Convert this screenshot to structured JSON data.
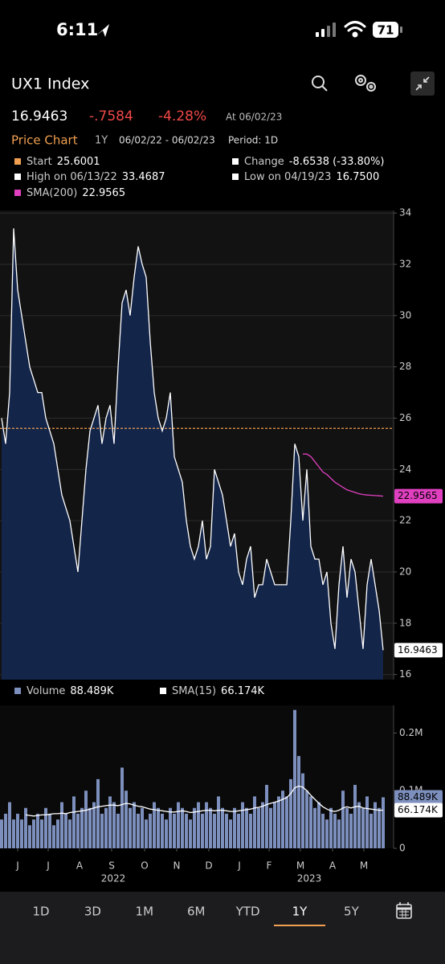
{
  "status_bar": {
    "time": "6:11",
    "battery": "71"
  },
  "header": {
    "title": "UX1 Index"
  },
  "quote": {
    "last": "16.9463",
    "change": "-.7584",
    "change_pct": "-4.28%",
    "as_of": "At 06/02/23"
  },
  "chart_header": {
    "title": "Price Chart",
    "range": "1Y",
    "dates": "06/02/22 - 06/02/23",
    "period": "Period: 1D"
  },
  "stats": [
    {
      "label": "Start",
      "value": "25.6001",
      "color": "#f0a050"
    },
    {
      "label": "High on 06/13/22",
      "value": "33.4687",
      "color": "#ffffff"
    },
    {
      "label": "SMA(200)",
      "value": "22.9565",
      "color": "#e040c0"
    },
    {
      "label": "Change",
      "value": "-8.6538 (-33.80%)",
      "color": "#ffffff"
    },
    {
      "label": "Low on 04/19/23",
      "value": "16.7500",
      "color": "#ffffff"
    }
  ],
  "chart_data": [
    {
      "type": "area",
      "xlim": [
        0,
        95
      ],
      "ylim": [
        15.8,
        34.1
      ],
      "yticks": [
        16,
        18,
        20,
        22,
        24,
        26,
        28,
        30,
        32,
        34
      ],
      "grid": true,
      "fill": "#14254a",
      "reference_line": {
        "value": 25.6001,
        "color": "#f0a050"
      },
      "series": [
        {
          "color": "#ffffff",
          "values": [
            26,
            25,
            27,
            33.4,
            31,
            30,
            29,
            28,
            27.5,
            27,
            27,
            26,
            25.5,
            25,
            24,
            23,
            22.5,
            22,
            21,
            20,
            22,
            24,
            25.5,
            26,
            26.5,
            25,
            26,
            26.5,
            25,
            28,
            30.5,
            31,
            30,
            31.5,
            32.7,
            32,
            31.5,
            29,
            27,
            26,
            25.5,
            26,
            27,
            24.5,
            24,
            23.5,
            22,
            21,
            20.5,
            21,
            22,
            20.5,
            21,
            24,
            23.5,
            23,
            22,
            21,
            21.5,
            20,
            19.5,
            20.5,
            21,
            19,
            19.5,
            19.5,
            20.5,
            20,
            19.5,
            19.5,
            19.5,
            19.5,
            22,
            25,
            24.5,
            22,
            24,
            21,
            20.5,
            20.5,
            19.5,
            20,
            18,
            17,
            19.5,
            21,
            19,
            20.5,
            20,
            18.5,
            17,
            19.5,
            20.5,
            19.5,
            18.5,
            16.9463
          ]
        },
        {
          "color": "#e040c0",
          "values": [
            null,
            null,
            null,
            null,
            null,
            null,
            null,
            null,
            null,
            null,
            null,
            null,
            null,
            null,
            null,
            null,
            null,
            null,
            null,
            null,
            null,
            null,
            null,
            null,
            null,
            null,
            null,
            null,
            null,
            null,
            null,
            null,
            null,
            null,
            null,
            null,
            null,
            null,
            null,
            null,
            null,
            null,
            null,
            null,
            null,
            null,
            null,
            null,
            null,
            null,
            null,
            null,
            null,
            null,
            null,
            null,
            null,
            null,
            null,
            null,
            null,
            null,
            null,
            null,
            null,
            null,
            null,
            null,
            null,
            null,
            null,
            null,
            null,
            null,
            null,
            24.6,
            24.6,
            24.5,
            24.3,
            24.1,
            23.9,
            23.8,
            23.65,
            23.5,
            23.4,
            23.3,
            23.2,
            23.15,
            23.1,
            23.05,
            23.02,
            23.0,
            22.99,
            22.98,
            22.97,
            22.9565
          ]
        }
      ]
    },
    {
      "type": "bar",
      "xlim": [
        0,
        95
      ],
      "ylim": [
        0,
        0.248
      ],
      "yticks": [
        {
          "value": 0,
          "label": "0"
        },
        {
          "value": 0.1,
          "label": "0.1M"
        },
        {
          "value": 0.2,
          "label": "0.2M"
        }
      ],
      "xticks": [
        {
          "value": 4,
          "label": "J"
        },
        {
          "value": 11.6,
          "label": "J"
        },
        {
          "value": 19.4,
          "label": "A"
        },
        {
          "value": 27.4,
          "label": "S"
        },
        {
          "value": 35.6,
          "label": "O"
        },
        {
          "value": 43.6,
          "label": "N"
        },
        {
          "value": 51.6,
          "label": "D"
        },
        {
          "value": 59.2,
          "label": "J"
        },
        {
          "value": 66.6,
          "label": "F"
        },
        {
          "value": 74.4,
          "label": "M"
        },
        {
          "value": 82.4,
          "label": "A"
        },
        {
          "value": 90.2,
          "label": "M"
        }
      ],
      "years": [
        {
          "value": 27.8,
          "label": "2022"
        },
        {
          "value": 76.6,
          "label": "2023"
        }
      ],
      "series": [
        {
          "name": "Volume",
          "color": "#7d8fbd",
          "values": [
            0.05,
            0.06,
            0.08,
            0.05,
            0.06,
            0.05,
            0.07,
            0.04,
            0.05,
            0.06,
            0.05,
            0.07,
            0.06,
            0.04,
            0.05,
            0.08,
            0.06,
            0.05,
            0.09,
            0.06,
            0.07,
            0.1,
            0.07,
            0.08,
            0.12,
            0.06,
            0.07,
            0.09,
            0.08,
            0.06,
            0.14,
            0.1,
            0.07,
            0.08,
            0.06,
            0.07,
            0.05,
            0.06,
            0.08,
            0.07,
            0.06,
            0.05,
            0.07,
            0.06,
            0.08,
            0.07,
            0.06,
            0.05,
            0.07,
            0.08,
            0.06,
            0.08,
            0.07,
            0.06,
            0.09,
            0.07,
            0.06,
            0.05,
            0.07,
            0.06,
            0.08,
            0.07,
            0.06,
            0.09,
            0.07,
            0.08,
            0.11,
            0.07,
            0.08,
            0.09,
            0.1,
            0.09,
            0.12,
            0.24,
            0.16,
            0.13,
            0.1,
            0.09,
            0.07,
            0.08,
            0.06,
            0.05,
            0.07,
            0.06,
            0.05,
            0.1,
            0.07,
            0.06,
            0.11,
            0.08,
            0.07,
            0.09,
            0.06,
            0.08,
            0.07,
            0.088489
          ],
          "value_labels": [
            null,
            null,
            null,
            null,
            null,
            null,
            null,
            null,
            null,
            null,
            null,
            null,
            null,
            null,
            null,
            null,
            null,
            null,
            null,
            null,
            null,
            null,
            null,
            null,
            null,
            null,
            null,
            null,
            null,
            null,
            null,
            null,
            null,
            null,
            null,
            null,
            null,
            null,
            null,
            null,
            null,
            null,
            null,
            null,
            null,
            null,
            null,
            null,
            null,
            null,
            null,
            null,
            null,
            null,
            null,
            null,
            null,
            null,
            null,
            null,
            null,
            null,
            null,
            null,
            null,
            null,
            null,
            null,
            null,
            null,
            null,
            null,
            null,
            null,
            null,
            null,
            null,
            null,
            null,
            null,
            null,
            null,
            null,
            null,
            null,
            null,
            null,
            null,
            null,
            null,
            null,
            null,
            null,
            null,
            null,
            "88.489K"
          ]
        },
        {
          "name": "SMA(15)",
          "color": "#ffffff",
          "values": [
            null,
            null,
            null,
            null,
            null,
            null,
            0.058,
            0.057,
            0.056,
            0.057,
            0.058,
            0.058,
            0.059,
            0.06,
            0.06,
            0.061,
            0.06,
            0.062,
            0.063,
            0.064,
            0.065,
            0.066,
            0.068,
            0.07,
            0.072,
            0.073,
            0.074,
            0.075,
            0.075,
            0.074,
            0.076,
            0.078,
            0.077,
            0.075,
            0.073,
            0.072,
            0.07,
            0.068,
            0.067,
            0.066,
            0.065,
            0.064,
            0.063,
            0.063,
            0.064,
            0.065,
            0.064,
            0.062,
            0.063,
            0.064,
            0.065,
            0.066,
            0.066,
            0.065,
            0.066,
            0.066,
            0.065,
            0.064,
            0.064,
            0.065,
            0.066,
            0.067,
            0.068,
            0.07,
            0.071,
            0.073,
            0.076,
            0.078,
            0.08,
            0.082,
            0.085,
            0.088,
            0.095,
            0.105,
            0.108,
            0.106,
            0.1,
            0.092,
            0.085,
            0.078,
            0.072,
            0.068,
            0.065,
            0.064,
            0.066,
            0.07,
            0.072,
            0.07,
            0.072,
            0.073,
            0.07,
            0.069,
            0.068,
            0.067,
            0.066,
            0.066174
          ],
          "value_labels": [
            null,
            null,
            null,
            null,
            null,
            null,
            null,
            null,
            null,
            null,
            null,
            null,
            null,
            null,
            null,
            null,
            null,
            null,
            null,
            null,
            null,
            null,
            null,
            null,
            null,
            null,
            null,
            null,
            null,
            null,
            null,
            null,
            null,
            null,
            null,
            null,
            null,
            null,
            null,
            null,
            null,
            null,
            null,
            null,
            null,
            null,
            null,
            null,
            null,
            null,
            null,
            null,
            null,
            null,
            null,
            null,
            null,
            null,
            null,
            null,
            null,
            null,
            null,
            null,
            null,
            null,
            null,
            null,
            null,
            null,
            null,
            null,
            null,
            null,
            null,
            null,
            null,
            null,
            null,
            null,
            null,
            null,
            null,
            null,
            null,
            null,
            null,
            null,
            null,
            null,
            null,
            null,
            null,
            null,
            null,
            "66.174K"
          ]
        }
      ]
    }
  ],
  "tabs": [
    "1D",
    "3D",
    "1M",
    "6M",
    "YTD",
    "1Y",
    "5Y"
  ],
  "selected_tab": 5
}
